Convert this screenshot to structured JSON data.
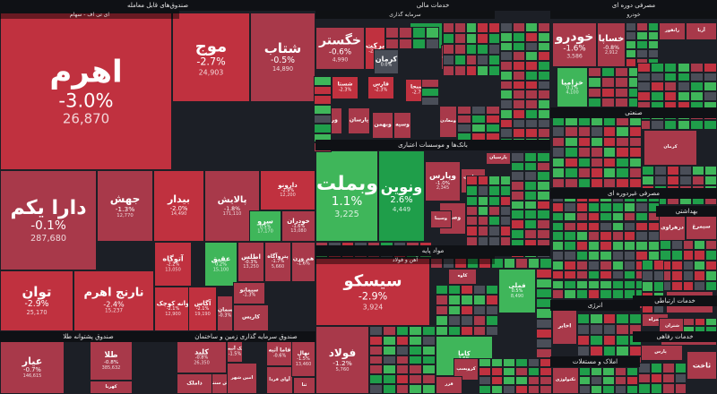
{
  "colors": {
    "up_strong": "#1f9e4a",
    "up": "#3fb65a",
    "down_strong": "#c0313f",
    "down": "#a8394a",
    "neutral": "#4a4e58",
    "border": "#1c1f26",
    "header": "#0f1115"
  },
  "chart_data": {
    "type": "treemap",
    "sectors": [
      {
        "name": "صندوق‌های قابل معامله",
        "sub": "ای تی اف - سهام"
      },
      {
        "name": "صندوق پشتوانه طلا"
      },
      {
        "name": "صندوق سرمایه گذاری زمین و ساختمان"
      },
      {
        "name": "خدمات مالی",
        "sub": "سرمایه گذاری"
      },
      {
        "name": "بانک‌ها و موسسات اعتباری"
      },
      {
        "name": "مواد پایه",
        "sub": "آهن و فولاد"
      },
      {
        "name": "مصرفی دوره ای",
        "sub": "خودرو"
      },
      {
        "name": "صنعتی"
      },
      {
        "name": "مصرفی غیردوره ای"
      },
      {
        "name": "بهداشتی"
      },
      {
        "name": "خدمات ارتباطی"
      },
      {
        "name": "انرژی"
      },
      {
        "name": "املاک و مستغلات"
      },
      {
        "name": "خدمات رفاهی"
      }
    ],
    "tiles": [
      {
        "symbol": "اهرم",
        "change": "-3.0%",
        "value": "26,870"
      },
      {
        "symbol": "موج",
        "change": "-2.7%",
        "value": "24,903"
      },
      {
        "symbol": "شتاب",
        "change": "-0.5%",
        "value": "14,890"
      },
      {
        "symbol": "دارا یکم",
        "change": "-0.1%",
        "value": "287,680"
      },
      {
        "symbol": "جهش",
        "change": "-1.3%",
        "value": "12,770"
      },
      {
        "symbol": "بیدار",
        "change": "-2.0%",
        "value": "14,490"
      },
      {
        "symbol": "پالایش",
        "change": "-1.8%",
        "value": "171,110"
      },
      {
        "symbol": "دارونو",
        "change": "-2.9%",
        "value": "12,200"
      },
      {
        "symbol": "سرو",
        "change": "0.5%",
        "value": "17,170"
      },
      {
        "symbol": "خودران",
        "change": "-1.6%",
        "value": "13,080"
      },
      {
        "symbol": "توان",
        "change": "-2.9%",
        "value": "25,170"
      },
      {
        "symbol": "نارنج اهرم",
        "change": "-2.4%",
        "value": "15,237"
      },
      {
        "symbol": "آتوگاه",
        "change": "-2.2%",
        "value": "13,050"
      },
      {
        "symbol": "عقیق",
        "change": "0.2%",
        "value": "15,100"
      },
      {
        "symbol": "اطلس",
        "change": "-0.3%",
        "value": "13,250"
      },
      {
        "symbol": "پتروآگاه",
        "change": "-1.7%",
        "value": "5,660"
      },
      {
        "symbol": "هم وزن",
        "change": "-1.6%",
        "value": ""
      },
      {
        "symbol": "وانه کوچک",
        "change": "-2.1%",
        "value": "12,900"
      },
      {
        "symbol": "آگاس",
        "change": "-2.1%",
        "value": "19,190"
      },
      {
        "symbol": "سیمانو",
        "change": "-1.3%",
        "value": ""
      },
      {
        "symbol": "سمان",
        "change": "-0.3%",
        "value": ""
      },
      {
        "symbol": "کاریس",
        "change": "",
        "value": ""
      },
      {
        "symbol": "عیار",
        "change": "-0.7%",
        "value": "146,615"
      },
      {
        "symbol": "طلا",
        "change": "-0.8%",
        "value": "385,632"
      },
      {
        "symbol": "کهربا",
        "change": "",
        "value": ""
      },
      {
        "symbol": "کلید",
        "change": "-0.8%",
        "value": "26,350"
      },
      {
        "symbol": "مالک آتیه",
        "change": "-1.5%",
        "value": ""
      },
      {
        "symbol": "ارزش سنتی",
        "change": "",
        "value": ""
      },
      {
        "symbol": "فاما آتیه",
        "change": "-0.6%",
        "value": ""
      },
      {
        "symbol": "آوای فردا",
        "change": "",
        "value": ""
      },
      {
        "symbol": "نهال",
        "change": "-1.5%",
        "value": "13,460"
      },
      {
        "symbol": "ثنا",
        "change": "",
        "value": ""
      },
      {
        "symbol": "امین شهر",
        "change": "",
        "value": ""
      },
      {
        "symbol": "ذاملک",
        "change": "",
        "value": ""
      },
      {
        "symbol": "خگستر",
        "change": "-0.6%",
        "value": "4,990"
      },
      {
        "symbol": "برکت",
        "change": "-2.7%",
        "value": ""
      },
      {
        "symbol": "وساپا",
        "change": "2.9%",
        "value": ""
      },
      {
        "symbol": "کرمان",
        "change": "0.0%",
        "value": ""
      },
      {
        "symbol": "شستا",
        "change": "-2.3%",
        "value": ""
      },
      {
        "symbol": "فارس",
        "change": "-2.3%",
        "value": ""
      },
      {
        "symbol": "دسبحا",
        "change": "-2.7%",
        "value": ""
      },
      {
        "symbol": "ومعادن",
        "change": "",
        "value": ""
      },
      {
        "symbol": "ورنا",
        "change": "",
        "value": ""
      },
      {
        "symbol": "پارسان",
        "change": "",
        "value": ""
      },
      {
        "symbol": "وبهمن",
        "change": "",
        "value": ""
      },
      {
        "symbol": "وسپه",
        "change": "",
        "value": ""
      },
      {
        "symbol": "شاخص",
        "change": "",
        "value": ""
      },
      {
        "symbol": "وبملت",
        "change": "1.1%",
        "value": "3,225"
      },
      {
        "symbol": "ونوین",
        "change": "2.6%",
        "value": "4,449"
      },
      {
        "symbol": "وپارس",
        "change": "-1.0%",
        "value": "2,345"
      },
      {
        "symbol": "وتجارت",
        "change": "-1.4%",
        "value": ""
      },
      {
        "symbol": "وصادر",
        "change": "",
        "value": ""
      },
      {
        "symbol": "پارسیان",
        "change": "",
        "value": ""
      },
      {
        "symbol": "وسینا",
        "change": "",
        "value": ""
      },
      {
        "symbol": "سیسکو",
        "change": "-2.9%",
        "value": "3,924"
      },
      {
        "symbol": "فولاد",
        "change": "-1.2%",
        "value": "5,760"
      },
      {
        "symbol": "فملی",
        "change": "0.5%",
        "value": "8,490"
      },
      {
        "symbol": "کاوه",
        "change": "",
        "value": ""
      },
      {
        "symbol": "کاما",
        "change": "1.6%",
        "value": ""
      },
      {
        "symbol": "کروپسپ",
        "change": "",
        "value": ""
      },
      {
        "symbol": "فزر",
        "change": "",
        "value": ""
      },
      {
        "symbol": "خودرو",
        "change": "-1.6%",
        "value": "3,586"
      },
      {
        "symbol": "خساپا",
        "change": "-0.8%",
        "value": "2,912"
      },
      {
        "symbol": "خزامیا",
        "change": "0.1%",
        "value": "4,100"
      },
      {
        "symbol": "خاور",
        "change": "",
        "value": ""
      },
      {
        "symbol": "رانفور",
        "change": "",
        "value": ""
      },
      {
        "symbol": "آریا",
        "change": "",
        "value": ""
      },
      {
        "symbol": "کرمان",
        "change": "",
        "value": ""
      },
      {
        "symbol": "سیمرغ",
        "change": "",
        "value": ""
      },
      {
        "symbol": "دزهراوی",
        "change": "",
        "value": ""
      },
      {
        "symbol": "شفا",
        "change": "",
        "value": ""
      },
      {
        "symbol": "همراه",
        "change": "",
        "value": ""
      },
      {
        "symbol": "اخابر",
        "change": "",
        "value": ""
      },
      {
        "symbol": "شتران",
        "change": "",
        "value": ""
      },
      {
        "symbol": "پارس",
        "change": "",
        "value": ""
      },
      {
        "symbol": "آپ",
        "change": "",
        "value": ""
      },
      {
        "symbol": "ثاخت",
        "change": "",
        "value": ""
      },
      {
        "symbol": "تکنولوژی",
        "change": "",
        "value": ""
      },
      {
        "symbol": "بجهرم",
        "change": "",
        "value": ""
      }
    ]
  }
}
